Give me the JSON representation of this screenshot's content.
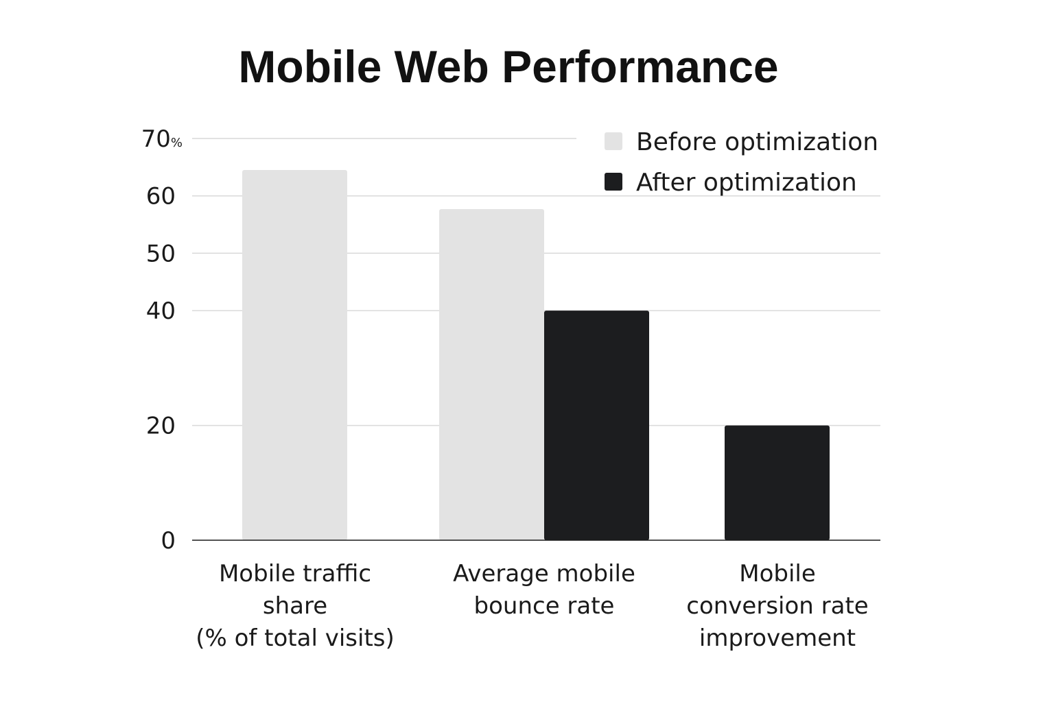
{
  "chart_data": {
    "type": "bar",
    "title": "Mobile Web Performance",
    "categories": [
      [
        "Mobile traffic",
        "share",
        "(% of total visits)"
      ],
      [
        "Average mobile",
        "bounce rate"
      ],
      [
        "Mobile",
        "conversion rate",
        "improvement"
      ]
    ],
    "series": [
      {
        "name": "Before optimization",
        "color": "#e3e3e3",
        "values": [
          64.5,
          57.7,
          null
        ]
      },
      {
        "name": "After optimization",
        "color": "#1c1d1f",
        "values": [
          null,
          40,
          20
        ]
      }
    ],
    "yticks": [
      {
        "value": 0,
        "label": "0",
        "unit": ""
      },
      {
        "value": 20,
        "label": "20",
        "unit": ""
      },
      {
        "value": 40,
        "label": "40",
        "unit": ""
      },
      {
        "value": 50,
        "label": "50",
        "unit": ""
      },
      {
        "value": 60,
        "label": "60",
        "unit": ""
      },
      {
        "value": 70,
        "label": "70",
        "unit": "%"
      }
    ],
    "ylim": [
      0,
      70
    ],
    "grid": true,
    "legend": "top-right"
  }
}
